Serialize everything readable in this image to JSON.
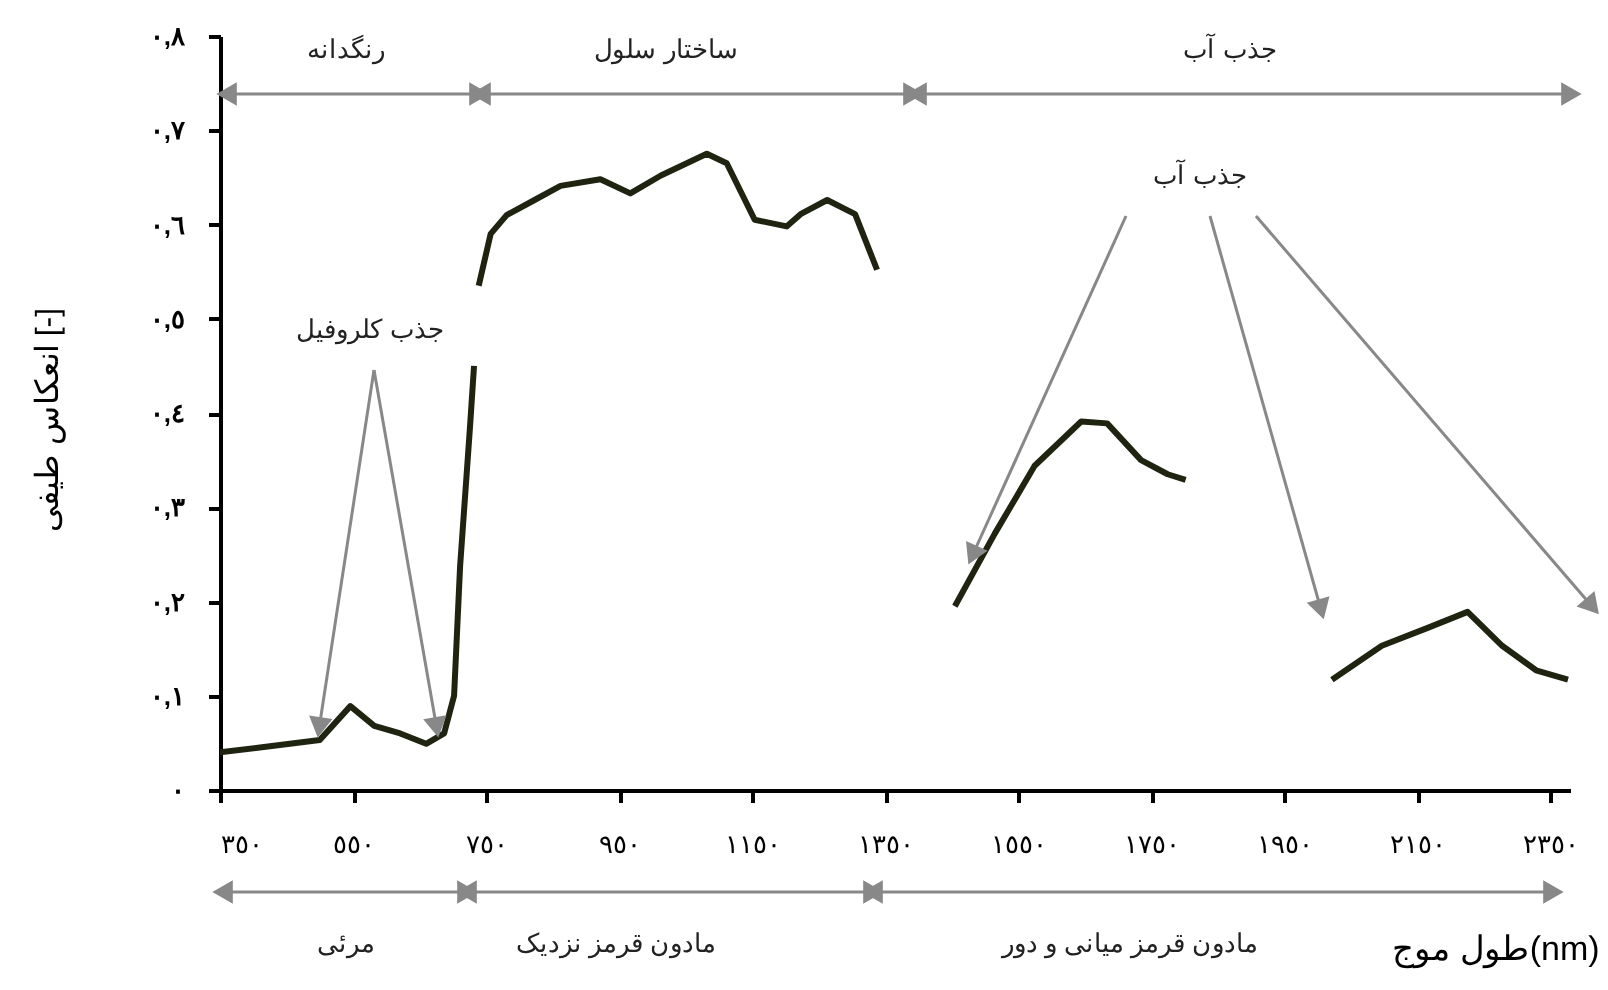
{
  "chart_data": {
    "type": "line",
    "xlabel": "طول موج(nm)",
    "ylabel": "انعکاس طیفی [-]",
    "x": [
      350,
      410,
      500,
      546,
      582,
      621,
      660,
      687,
      702,
      711,
      726,
      732,
      736,
      739,
      757,
      781,
      823,
      862,
      922,
      967,
      1013,
      1082,
      1112,
      1154,
      1202,
      1223,
      1263,
      1305,
      1338,
      1400,
      1455,
      1515,
      1575,
      1645,
      1684,
      1735,
      1775,
      1802,
      1900,
      2022,
      2097,
      2166,
      2226,
      2278,
      2329,
      2377
    ],
    "series": [
      {
        "color": "#1f2410",
        "values": [
          0.04,
          0.045,
          0.053,
          0.089,
          0.068,
          0.06,
          0.049,
          0.06,
          0.1,
          0.237,
          0.386,
          0.45,
          null,
          0.535,
          0.59,
          0.61,
          0.626,
          0.641,
          0.648,
          0.633,
          0.652,
          0.675,
          0.665,
          0.605,
          0.598,
          0.611,
          0.626,
          0.611,
          0.552,
          null,
          0.195,
          0.272,
          0.344,
          0.391,
          0.389,
          0.35,
          0.335,
          0.329,
          null,
          0.117,
          0.153,
          0.172,
          0.189,
          0.153,
          0.127,
          0.117
        ]
      }
    ],
    "xlim": [
      350,
      2380
    ],
    "ylim": [
      0,
      0.8
    ],
    "xticks": [
      {
        "value": 350,
        "label": "٣٥٠"
      },
      {
        "value": 550,
        "label": "٥٥٠"
      },
      {
        "value": 750,
        "label": "٧٥٠"
      },
      {
        "value": 950,
        "label": "٩٥٠"
      },
      {
        "value": 1150,
        "label": "١١٥٠"
      },
      {
        "value": 1350,
        "label": "١٣٥٠"
      },
      {
        "value": 1550,
        "label": "١٥٥٠"
      },
      {
        "value": 1750,
        "label": "١٧٥٠"
      },
      {
        "value": 1950,
        "label": "١٩٥٠"
      },
      {
        "value": 2150,
        "label": "٢١٥٠"
      },
      {
        "value": 2350,
        "label": "٢٣٥٠"
      }
    ],
    "yticks": [
      {
        "value": 0,
        "label": "٠"
      },
      {
        "value": 0.1,
        "label": "٠,١"
      },
      {
        "value": 0.2,
        "label": "٠,٢"
      },
      {
        "value": 0.3,
        "label": "٠,٣"
      },
      {
        "value": 0.4,
        "label": "٠,٤"
      },
      {
        "value": 0.5,
        "label": "٠,٥"
      },
      {
        "value": 0.6,
        "label": "٠,٦"
      },
      {
        "value": 0.7,
        "label": "٠,٧"
      },
      {
        "value": 0.8,
        "label": "٠,٨"
      }
    ],
    "grid": false,
    "annotations": [
      "رنگدانه",
      "ساختار سلول",
      "جذب آب",
      {
        "text": "جذب کلروفیل",
        "x": 500,
        "y": 0.053
      },
      "جذب آب",
      "مرئی",
      "مادون قرمز نزدیک",
      "مادون قرمز میانی و دور"
    ]
  }
}
